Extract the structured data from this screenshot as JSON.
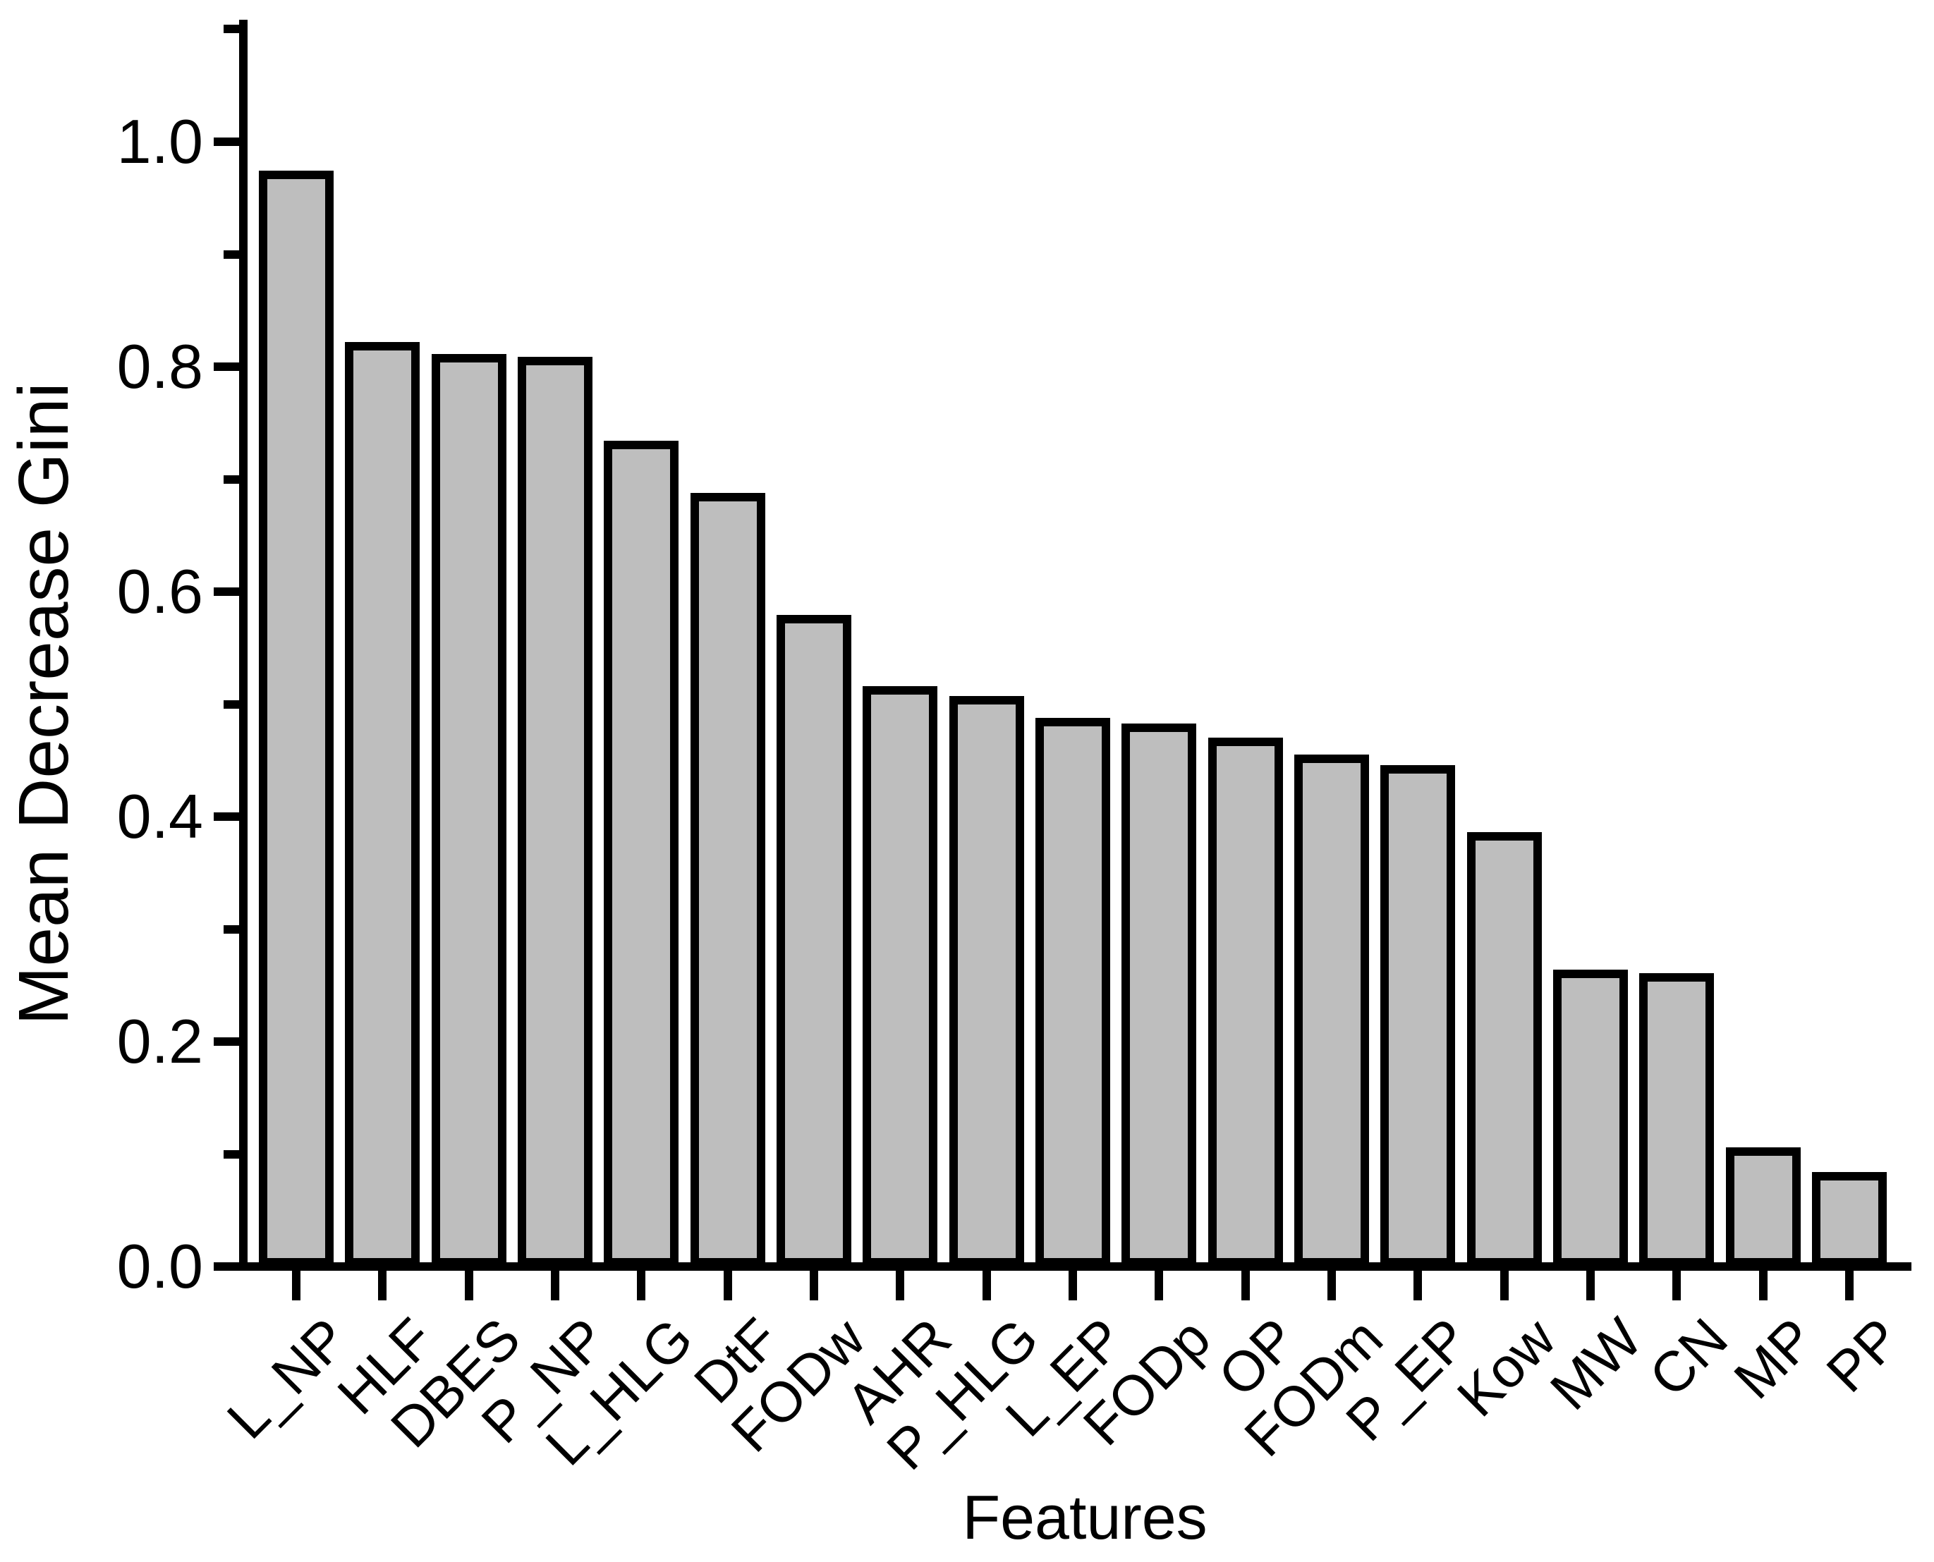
{
  "figure": {
    "background": "#ffffff",
    "bar_fill": "#bebebe",
    "bar_stroke": "#000000",
    "axis_color": "#000000",
    "text_color": "#000000"
  },
  "chart_data": {
    "type": "bar",
    "title": "",
    "xlabel": "Features",
    "ylabel": "Mean Decrease Gini",
    "categories": [
      "L_NP",
      "HLF",
      "DBES",
      "P_NP",
      "L_HLG",
      "DtF",
      "FODw",
      "AHR",
      "P_HLG",
      "L_EP",
      "FODp",
      "OP",
      "FODm",
      "P_EP",
      "Kow",
      "MW",
      "CN",
      "MP",
      "PP"
    ],
    "values": [
      0.974,
      0.822,
      0.811,
      0.809,
      0.734,
      0.688,
      0.579,
      0.516,
      0.507,
      0.488,
      0.483,
      0.47,
      0.455,
      0.446,
      0.386,
      0.264,
      0.261,
      0.106,
      0.084
    ],
    "ylim": [
      0.0,
      1.1
    ],
    "yticks": [
      0.0,
      0.2,
      0.4,
      0.6,
      0.8,
      1.0
    ],
    "ytick_labels": [
      "0.0",
      "0.2",
      "0.4",
      "0.6",
      "0.8",
      "1.0"
    ],
    "yticks_minor": [
      0.1,
      0.3,
      0.5,
      0.7,
      0.9,
      1.1
    ],
    "grid": false,
    "legend": "none",
    "bar_orientation": "vertical",
    "xtick_label_rotation_deg": 45
  }
}
